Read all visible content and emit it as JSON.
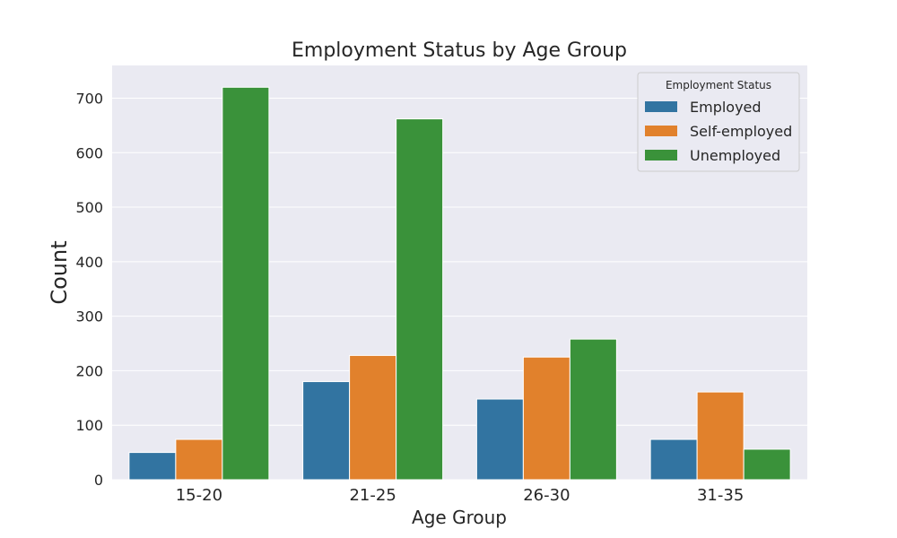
{
  "chart_data": {
    "type": "bar",
    "title": "Employment Status by Age Group",
    "xlabel": "Age Group",
    "ylabel": "Count",
    "categories": [
      "15-20",
      "21-25",
      "26-30",
      "31-35"
    ],
    "series": [
      {
        "name": "Employed",
        "values": [
          50,
          180,
          148,
          74
        ],
        "color": "#3274a1"
      },
      {
        "name": "Self-employed",
        "values": [
          74,
          228,
          225,
          161
        ],
        "color": "#e1812c"
      },
      {
        "name": "Unemployed",
        "values": [
          720,
          662,
          258,
          56
        ],
        "color": "#3a923a"
      }
    ],
    "ylim": [
      0,
      760
    ],
    "yticks": [
      0,
      100,
      200,
      300,
      400,
      500,
      600,
      700
    ],
    "grid": true,
    "legend": {
      "title": "Employment Status",
      "position": "top-right"
    }
  }
}
